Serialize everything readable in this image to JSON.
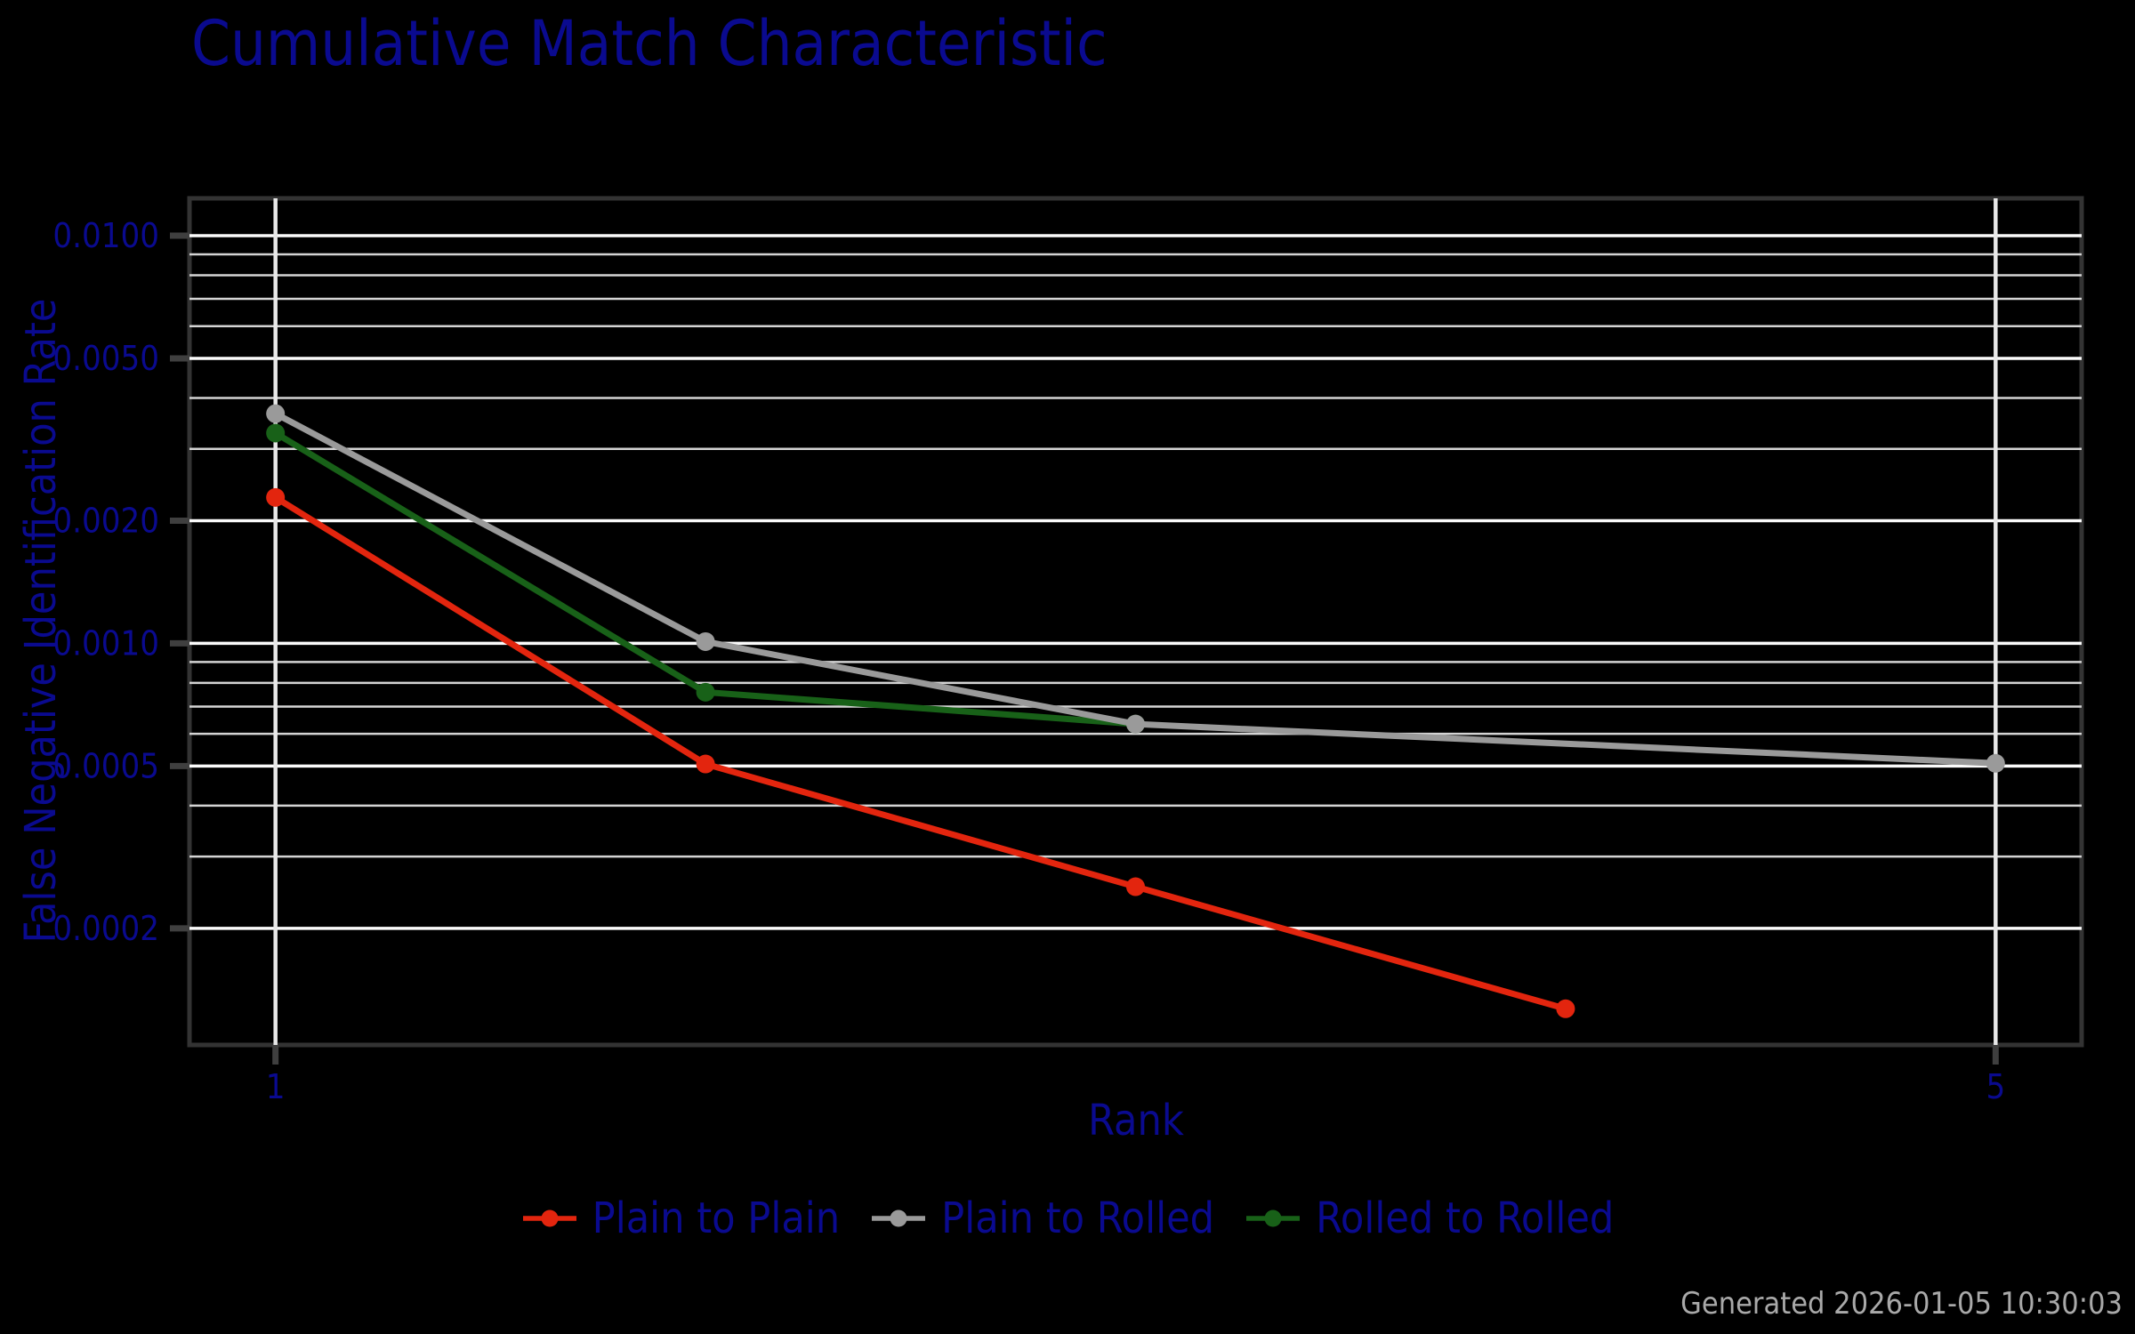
{
  "title": "Cumulative Match Characteristic",
  "axes": {
    "x_label": "Rank",
    "y_label": "False Negative Identification Rate"
  },
  "footer": {
    "generated_text": "Generated 2026-01-05 10:30:03"
  },
  "colors": {
    "background": "#000000",
    "text": "#0A0A8F",
    "frame": "#333333",
    "tick": "#3F3F3F",
    "grid_major": "#FBFBFB",
    "grid_minor": "#D4D4D4",
    "grid_vertical": "#E8E8E8",
    "footer_text": "#A9A9A9"
  },
  "chart_data": {
    "type": "line",
    "title": "Cumulative Match Characteristic",
    "xlabel": "Rank",
    "ylabel": "False Negative Identification Rate",
    "x_scale": "linear",
    "y_scale": "log",
    "xlim": [
      0.8,
      5.2
    ],
    "ylim": [
      0.0001035,
      0.01235
    ],
    "grid": true,
    "legend_position": "bottom",
    "x_ticks": [
      {
        "value": 1,
        "label": "1"
      },
      {
        "value": 5,
        "label": "5"
      }
    ],
    "y_ticks": [
      {
        "value": 0.01,
        "label": "0.0100"
      },
      {
        "value": 0.005,
        "label": "0.0050"
      },
      {
        "value": 0.002,
        "label": "0.0020"
      },
      {
        "value": 0.001,
        "label": "0.0010"
      },
      {
        "value": 0.0005,
        "label": "0.0005"
      },
      {
        "value": 0.0002,
        "label": "0.0002"
      }
    ],
    "y_minor_gridlines": [
      0.009,
      0.008,
      0.007,
      0.006,
      0.004,
      0.003,
      0.0009,
      0.0008,
      0.0007,
      0.0006,
      0.0004,
      0.0003
    ],
    "series": [
      {
        "name": "Plain to Plain",
        "color": "#E3250E",
        "points": [
          [
            1,
            0.00228
          ],
          [
            2,
            0.000506
          ],
          [
            3,
            0.000253
          ],
          [
            4,
            0.000127
          ]
        ]
      },
      {
        "name": "Plain to Rolled",
        "color": "#9A9A9A",
        "points": [
          [
            1,
            0.00366
          ],
          [
            2,
            0.00101
          ],
          [
            3,
            0.000634
          ],
          [
            5,
            0.000508
          ]
        ]
      },
      {
        "name": "Rolled to Rolled",
        "color": "#186118",
        "points": [
          [
            1,
            0.00328
          ],
          [
            2,
            0.000759
          ],
          [
            3,
            0.000634
          ]
        ]
      }
    ],
    "draw_order": [
      0,
      2,
      1
    ]
  }
}
